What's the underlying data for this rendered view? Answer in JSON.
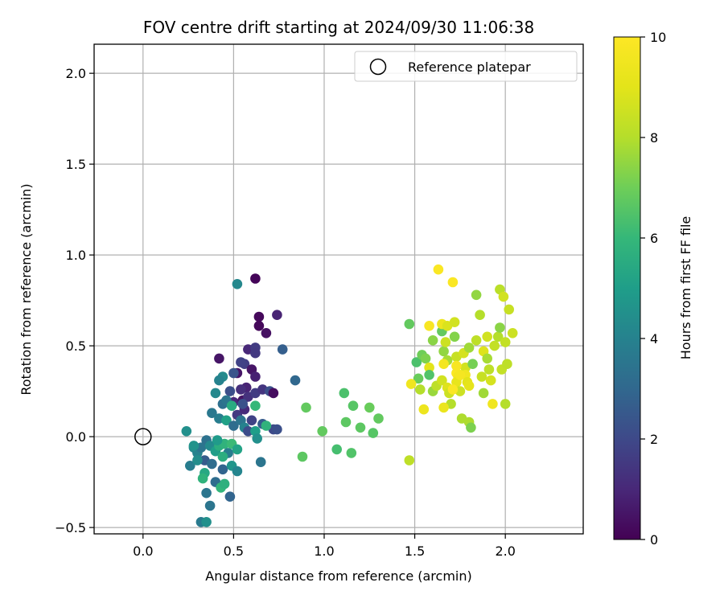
{
  "chart_data": {
    "type": "scatter",
    "title": "FOV centre drift starting at 2024/09/30 11:06:38",
    "xlabel": "Angular distance from reference (arcmin)",
    "ylabel": "Rotation from reference (arcmin)",
    "xlim": [
      -0.27,
      2.43
    ],
    "ylim": [
      -0.535,
      2.16
    ],
    "xticks": [
      "0.0",
      "0.5",
      "1.0",
      "1.5",
      "2.0"
    ],
    "yticks": [
      "−0.5",
      "0.0",
      "0.5",
      "1.0",
      "1.5",
      "2.0"
    ],
    "grid": true,
    "legend": {
      "position": "top-right",
      "entries": [
        "Reference platepar"
      ]
    },
    "reference_point": {
      "x": 0.0,
      "y": 0.0,
      "label": "Reference platepar"
    },
    "colorbar": {
      "label": "Hours from first FF file",
      "min": 0,
      "max": 10,
      "ticks": [
        "0",
        "2",
        "4",
        "6",
        "8",
        "10"
      ],
      "colormap": "viridis"
    },
    "series": [
      {
        "points": [
          [
            0.62,
            0.87,
            0.1
          ],
          [
            0.64,
            0.66,
            0.2
          ],
          [
            0.64,
            0.61,
            0.2
          ],
          [
            0.68,
            0.57,
            0.4
          ],
          [
            0.74,
            0.67,
            0.9
          ],
          [
            0.58,
            0.48,
            1.0
          ],
          [
            0.42,
            0.43,
            0.5
          ],
          [
            0.62,
            0.49,
            1.6
          ],
          [
            0.62,
            0.46,
            1.5
          ],
          [
            0.77,
            0.48,
            2.7
          ],
          [
            0.56,
            0.4,
            1.7
          ],
          [
            0.54,
            0.41,
            1.8
          ],
          [
            0.6,
            0.37,
            0.5
          ],
          [
            0.52,
            0.35,
            0.5
          ],
          [
            0.62,
            0.33,
            0.8
          ],
          [
            0.57,
            0.27,
            0.9
          ],
          [
            0.54,
            0.26,
            1.2
          ],
          [
            0.48,
            0.25,
            2.2
          ],
          [
            0.5,
            0.19,
            1.0
          ],
          [
            0.55,
            0.2,
            0.5
          ],
          [
            0.58,
            0.22,
            1.3
          ],
          [
            0.62,
            0.24,
            1.6
          ],
          [
            0.66,
            0.26,
            1.4
          ],
          [
            0.7,
            0.25,
            2.2
          ],
          [
            0.72,
            0.24,
            0.3
          ],
          [
            0.52,
            0.12,
            1.5
          ],
          [
            0.56,
            0.15,
            1.1
          ],
          [
            0.6,
            0.09,
            1.8
          ],
          [
            0.66,
            0.07,
            2.6
          ],
          [
            0.72,
            0.04,
            2.0
          ],
          [
            0.74,
            0.04,
            2.2
          ],
          [
            0.84,
            0.31,
            3.0
          ],
          [
            0.5,
            0.35,
            2.4
          ],
          [
            0.44,
            0.33,
            4.3
          ],
          [
            0.42,
            0.31,
            4.0
          ],
          [
            0.4,
            0.24,
            4.2
          ],
          [
            0.44,
            0.18,
            3.3
          ],
          [
            0.46,
            0.2,
            3.5
          ],
          [
            0.49,
            0.17,
            5.5
          ],
          [
            0.55,
            0.18,
            2.3
          ],
          [
            0.62,
            0.17,
            6.0
          ],
          [
            0.38,
            0.13,
            3.6
          ],
          [
            0.42,
            0.1,
            3.8
          ],
          [
            0.46,
            0.09,
            5.1
          ],
          [
            0.5,
            0.06,
            3.2
          ],
          [
            0.54,
            0.09,
            3.5
          ],
          [
            0.56,
            0.05,
            4.0
          ],
          [
            0.58,
            0.03,
            2.1
          ],
          [
            0.62,
            0.03,
            5.0
          ],
          [
            0.63,
            -0.01,
            4.5
          ],
          [
            0.68,
            0.06,
            5.8
          ],
          [
            0.52,
            0.84,
            4.2
          ],
          [
            0.24,
            0.03,
            4.5
          ],
          [
            0.28,
            -0.06,
            4.2
          ],
          [
            0.3,
            -0.09,
            4.0
          ],
          [
            0.32,
            -0.06,
            3.5
          ],
          [
            0.35,
            -0.02,
            3.4
          ],
          [
            0.37,
            -0.05,
            4.3
          ],
          [
            0.4,
            -0.08,
            5.0
          ],
          [
            0.42,
            -0.05,
            5.6
          ],
          [
            0.45,
            -0.04,
            5.8
          ],
          [
            0.47,
            -0.09,
            3.8
          ],
          [
            0.49,
            -0.04,
            6.1
          ],
          [
            0.52,
            -0.07,
            5.2
          ],
          [
            0.34,
            -0.13,
            2.6
          ],
          [
            0.38,
            -0.15,
            3.2
          ],
          [
            0.44,
            -0.11,
            5.6
          ],
          [
            0.26,
            -0.16,
            3.8
          ],
          [
            0.3,
            -0.13,
            4.4
          ],
          [
            0.34,
            -0.2,
            5.4
          ],
          [
            0.33,
            -0.23,
            5.8
          ],
          [
            0.4,
            -0.25,
            3.2
          ],
          [
            0.44,
            -0.18,
            2.9
          ],
          [
            0.49,
            -0.16,
            4.7
          ],
          [
            0.52,
            -0.19,
            4.1
          ],
          [
            0.43,
            -0.28,
            5.9
          ],
          [
            0.45,
            -0.26,
            5.7
          ],
          [
            0.35,
            -0.31,
            3.5
          ],
          [
            0.48,
            -0.33,
            2.9
          ],
          [
            0.37,
            -0.38,
            3.5
          ],
          [
            0.32,
            -0.47,
            3.7
          ],
          [
            0.35,
            -0.47,
            4.5
          ],
          [
            0.65,
            -0.14,
            3.5
          ],
          [
            0.28,
            -0.05,
            4.6
          ],
          [
            0.41,
            -0.02,
            4.9
          ],
          [
            0.9,
            0.16,
            6.8
          ],
          [
            0.88,
            -0.11,
            6.7
          ],
          [
            0.99,
            0.03,
            6.8
          ],
          [
            1.07,
            -0.07,
            6.3
          ],
          [
            1.11,
            0.24,
            6.4
          ],
          [
            1.12,
            0.08,
            6.7
          ],
          [
            1.15,
            -0.09,
            6.5
          ],
          [
            1.16,
            0.17,
            6.6
          ],
          [
            1.2,
            0.05,
            6.7
          ],
          [
            1.25,
            0.16,
            6.9
          ],
          [
            1.27,
            0.02,
            6.6
          ],
          [
            1.3,
            0.1,
            6.8
          ],
          [
            1.47,
            0.62,
            6.8
          ],
          [
            1.47,
            -0.13,
            8.2
          ],
          [
            1.51,
            0.41,
            6.4
          ],
          [
            1.52,
            0.32,
            6.9
          ],
          [
            1.54,
            0.45,
            7.0
          ],
          [
            1.53,
            0.26,
            8.0
          ],
          [
            1.56,
            0.43,
            7.2
          ],
          [
            1.58,
            0.38,
            9.0
          ],
          [
            1.58,
            0.34,
            6.5
          ],
          [
            1.6,
            0.53,
            7.4
          ],
          [
            1.6,
            0.25,
            7.6
          ],
          [
            1.62,
            0.28,
            8.2
          ],
          [
            1.65,
            0.58,
            6.8
          ],
          [
            1.65,
            0.62,
            9.4
          ],
          [
            1.66,
            0.47,
            7.5
          ],
          [
            1.68,
            0.61,
            8.8
          ],
          [
            1.67,
            0.52,
            8.5
          ],
          [
            1.68,
            0.42,
            7.8
          ],
          [
            1.66,
            0.4,
            9.6
          ],
          [
            1.65,
            0.31,
            8.6
          ],
          [
            1.68,
            0.27,
            8.9
          ],
          [
            1.7,
            0.18,
            8.0
          ],
          [
            1.72,
            0.55,
            7.3
          ],
          [
            1.72,
            0.63,
            8.6
          ],
          [
            1.73,
            0.44,
            8.4
          ],
          [
            1.73,
            0.35,
            9.9
          ],
          [
            1.74,
            0.33,
            9.6
          ],
          [
            1.73,
            0.3,
            9.2
          ],
          [
            1.75,
            0.25,
            8.5
          ],
          [
            1.76,
            0.1,
            7.9
          ],
          [
            1.77,
            0.46,
            8.7
          ],
          [
            1.78,
            0.38,
            8.6
          ],
          [
            1.78,
            0.34,
            9.5
          ],
          [
            1.79,
            0.3,
            9.0
          ],
          [
            1.8,
            0.08,
            7.9
          ],
          [
            1.81,
            0.05,
            7.2
          ],
          [
            1.8,
            0.49,
            7.7
          ],
          [
            1.82,
            0.4,
            7.1
          ],
          [
            1.84,
            0.53,
            8.2
          ],
          [
            1.84,
            0.78,
            7.5
          ],
          [
            1.86,
            0.67,
            8.0
          ],
          [
            1.87,
            0.33,
            8.4
          ],
          [
            1.88,
            0.24,
            7.7
          ],
          [
            1.88,
            0.47,
            8.9
          ],
          [
            1.9,
            0.55,
            8.6
          ],
          [
            1.9,
            0.43,
            7.8
          ],
          [
            1.91,
            0.37,
            8.2
          ],
          [
            1.92,
            0.31,
            8.7
          ],
          [
            1.93,
            0.18,
            9.5
          ],
          [
            1.94,
            0.5,
            8.3
          ],
          [
            1.96,
            0.55,
            8.0
          ],
          [
            1.97,
            0.81,
            8.1
          ],
          [
            1.97,
            0.6,
            7.4
          ],
          [
            1.98,
            0.37,
            8.3
          ],
          [
            1.99,
            0.77,
            8.6
          ],
          [
            2.0,
            0.52,
            8.3
          ],
          [
            2.0,
            0.18,
            8.0
          ],
          [
            2.01,
            0.4,
            8.2
          ],
          [
            2.02,
            0.7,
            8.4
          ],
          [
            2.04,
            0.57,
            8.5
          ],
          [
            1.48,
            0.29,
            9.5
          ],
          [
            1.55,
            0.15,
            9.4
          ],
          [
            1.58,
            0.61,
            9.8
          ],
          [
            1.63,
            0.92,
            9.9
          ],
          [
            1.71,
            0.85,
            9.9
          ],
          [
            1.66,
            0.16,
            9.3
          ],
          [
            1.69,
            0.24,
            8.5
          ],
          [
            1.71,
            0.26,
            9.9
          ],
          [
            1.73,
            0.39,
            9.8
          ],
          [
            1.75,
            0.34,
            9.7
          ],
          [
            1.8,
            0.28,
            9.1
          ]
        ]
      }
    ]
  }
}
